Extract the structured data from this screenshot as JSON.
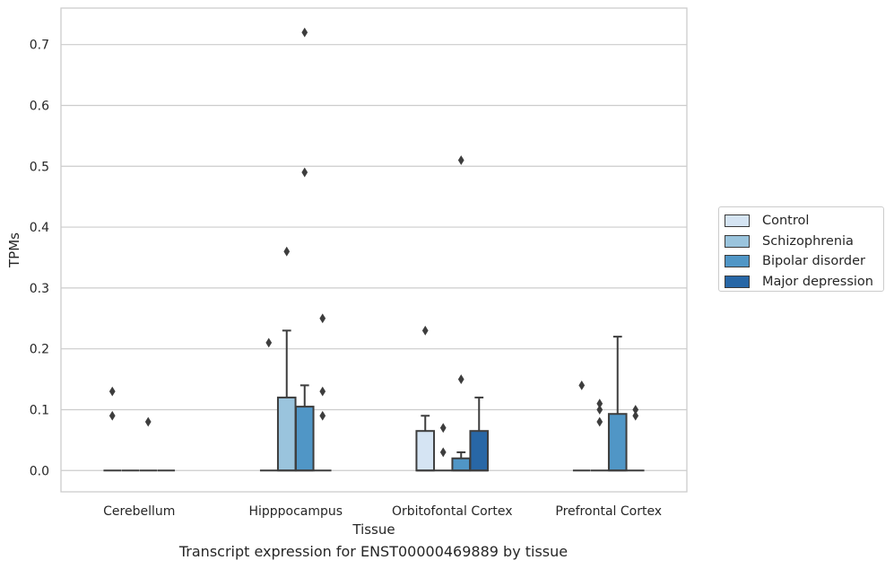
{
  "chart_data": {
    "type": "box",
    "title": "Transcript expression for ENST00000469889 by tissue",
    "xlabel": "Tissue",
    "ylabel": "TPMs",
    "ylim": [
      -0.035,
      0.76
    ],
    "yticks": [
      "0.0",
      "0.1",
      "0.2",
      "0.3",
      "0.4",
      "0.5",
      "0.6",
      "0.7"
    ],
    "categories": [
      "Cerebellum",
      "Hipppocampus",
      "Orbitofontal Cortex",
      "Prefrontal Cortex"
    ],
    "grid": true,
    "legend_position": "right",
    "series": [
      {
        "name": "Control",
        "color": "#d5e4f3",
        "boxes": [
          {
            "q1": 0,
            "median": 0,
            "q3": 0,
            "whisker_low": 0,
            "whisker_high": 0,
            "outliers": [
              0.13,
              0.09
            ]
          },
          {
            "q1": 0,
            "median": 0,
            "q3": 0,
            "whisker_low": 0,
            "whisker_high": 0,
            "outliers": [
              0.21
            ]
          },
          {
            "q1": 0,
            "median": 0,
            "q3": 0.065,
            "whisker_low": 0,
            "whisker_high": 0.09,
            "outliers": [
              0.23
            ]
          },
          {
            "q1": 0,
            "median": 0,
            "q3": 0,
            "whisker_low": 0,
            "whisker_high": 0,
            "outliers": [
              0.14
            ]
          }
        ]
      },
      {
        "name": "Schizophrenia",
        "color": "#9ac4dd",
        "boxes": [
          {
            "q1": 0,
            "median": 0,
            "q3": 0,
            "whisker_low": 0,
            "whisker_high": 0,
            "outliers": []
          },
          {
            "q1": 0,
            "median": 0,
            "q3": 0.12,
            "whisker_low": 0,
            "whisker_high": 0.23,
            "outliers": [
              0.36
            ]
          },
          {
            "q1": 0,
            "median": 0,
            "q3": 0,
            "whisker_low": 0,
            "whisker_high": 0,
            "outliers": [
              0.07,
              0.03
            ]
          },
          {
            "q1": 0,
            "median": 0,
            "q3": 0,
            "whisker_low": 0,
            "whisker_high": 0,
            "outliers": [
              0.11,
              0.1,
              0.08
            ]
          }
        ]
      },
      {
        "name": "Bipolar disorder",
        "color": "#5096c6",
        "boxes": [
          {
            "q1": 0,
            "median": 0,
            "q3": 0,
            "whisker_low": 0,
            "whisker_high": 0,
            "outliers": [
              0.08
            ]
          },
          {
            "q1": 0,
            "median": 0,
            "q3": 0.105,
            "whisker_low": 0,
            "whisker_high": 0.14,
            "outliers": [
              0.72,
              0.49
            ]
          },
          {
            "q1": 0,
            "median": 0,
            "q3": 0.02,
            "whisker_low": 0,
            "whisker_high": 0.03,
            "outliers": [
              0.51,
              0.15
            ]
          },
          {
            "q1": 0,
            "median": 0,
            "q3": 0.093,
            "whisker_low": 0,
            "whisker_high": 0.22,
            "outliers": []
          }
        ]
      },
      {
        "name": "Major depression",
        "color": "#2867a6",
        "boxes": [
          {
            "q1": 0,
            "median": 0,
            "q3": 0,
            "whisker_low": 0,
            "whisker_high": 0,
            "outliers": []
          },
          {
            "q1": 0,
            "median": 0,
            "q3": 0,
            "whisker_low": 0,
            "whisker_high": 0,
            "outliers": [
              0.25,
              0.13,
              0.09
            ]
          },
          {
            "q1": 0,
            "median": 0,
            "q3": 0.065,
            "whisker_low": 0,
            "whisker_high": 0.12,
            "outliers": []
          },
          {
            "q1": 0,
            "median": 0,
            "q3": 0,
            "whisker_low": 0,
            "whisker_high": 0,
            "outliers": [
              0.1,
              0.09
            ]
          }
        ]
      }
    ]
  }
}
